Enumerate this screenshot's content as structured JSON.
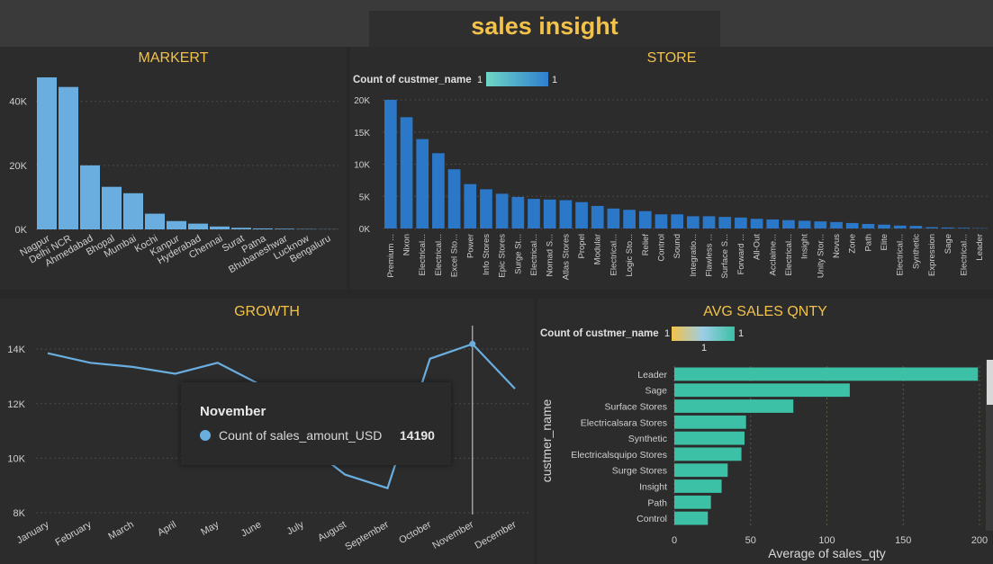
{
  "dashboard": {
    "title": "sales insight"
  },
  "colors": {
    "accent": "#f2c24a",
    "market_bar": "#6aaee0",
    "store_bar": "#2b78c8",
    "avg_bar": "#3cc0a6",
    "growth_line": "#6aaee0"
  },
  "market": {
    "title": "MARKERT",
    "chart_data": {
      "type": "bar",
      "categories": [
        "Nagpur",
        "Delhi NCR",
        "Ahmedabad",
        "Bhopal",
        "Mumbai",
        "Kochi",
        "Kanpur",
        "Hyderabad",
        "Chennai",
        "Surat",
        "Patna",
        "Bhubaneshwar",
        "Lucknow",
        "Bengaluru"
      ],
      "values": [
        47500,
        44500,
        20000,
        13300,
        11300,
        4900,
        2600,
        1800,
        900,
        500,
        300,
        200,
        100,
        50
      ],
      "yticks": [
        0,
        20000,
        40000
      ],
      "ytick_labels": [
        "0K",
        "20K",
        "40K"
      ],
      "ylim": [
        0,
        52000
      ]
    }
  },
  "store": {
    "title": "STORE",
    "legend_title": "Count of custmer_name",
    "legend_min": "1",
    "legend_max": "1",
    "chart_data": {
      "type": "bar",
      "categories": [
        "Premium ...",
        "Nixon",
        "Electrical...",
        "Electrical...",
        "Excel Sto...",
        "Power",
        "Info Stores",
        "Epic Stores",
        "Surge St...",
        "Electrical...",
        "Nomad S...",
        "Atlas Stores",
        "Propel",
        "Modular",
        "Electrical...",
        "Logic Sto...",
        "Relief",
        "Control",
        "Sound",
        "Integratio...",
        "Flawless ...",
        "Surface S...",
        "Forward ...",
        "All-Out",
        "Acclaime...",
        "Electrical...",
        "Insight",
        "Unity Stor...",
        "Novus",
        "Zone",
        "Path",
        "Elite",
        "Electrical...",
        "Synthetic",
        "Expression",
        "Sage",
        "Electrical...",
        "Leader"
      ],
      "values": [
        20000,
        17300,
        13900,
        11700,
        9200,
        6900,
        6100,
        5400,
        4900,
        4600,
        4500,
        4400,
        4100,
        3500,
        3100,
        2900,
        2700,
        2200,
        2200,
        1900,
        1900,
        1800,
        1700,
        1500,
        1400,
        1300,
        1200,
        1100,
        1000,
        850,
        700,
        600,
        450,
        400,
        200,
        150,
        100,
        50
      ],
      "yticks": [
        0,
        5000,
        10000,
        15000,
        20000
      ],
      "ytick_labels": [
        "0K",
        "5K",
        "10K",
        "15K",
        "20K"
      ],
      "ylim": [
        0,
        20000
      ]
    }
  },
  "growth": {
    "title": "GROWTH",
    "chart_data": {
      "type": "line",
      "categories": [
        "January",
        "February",
        "March",
        "April",
        "May",
        "June",
        "July",
        "August",
        "September",
        "October",
        "November",
        "December"
      ],
      "values": [
        13850,
        13500,
        13350,
        13100,
        13500,
        12700,
        10600,
        9400,
        8900,
        13650,
        14190,
        12550
      ],
      "yticks": [
        8000,
        10000,
        12000,
        14000
      ],
      "ytick_labels": [
        "8K",
        "10K",
        "12K",
        "14K"
      ],
      "ylim": [
        8000,
        14600
      ],
      "hovered_category": "November"
    },
    "tooltip": {
      "title": "November",
      "label": "Count of sales_amount_USD",
      "value": "14190"
    }
  },
  "avg": {
    "title": "AVG SALES QNTY",
    "legend_title": "Count of custmer_name",
    "legend_min": "1",
    "legend_max": "1",
    "legend_mid": "1",
    "chart_data": {
      "type": "bar",
      "orientation": "horizontal",
      "categories": [
        "Leader",
        "Sage",
        "Surface Stores",
        "Electricalsara Stores",
        "Synthetic",
        "Electricalsquipo Stores",
        "Surge Stores",
        "Insight",
        "Path",
        "Control"
      ],
      "values": [
        199,
        115,
        78,
        47,
        46,
        44,
        35,
        31,
        24,
        22
      ],
      "xticks": [
        0,
        50,
        100,
        150,
        200
      ],
      "xtick_labels": [
        "0",
        "50",
        "100",
        "150",
        "200"
      ],
      "xlim": [
        0,
        200
      ],
      "xlabel": "Average of sales_qty",
      "ylabel": "custmer_name"
    }
  }
}
